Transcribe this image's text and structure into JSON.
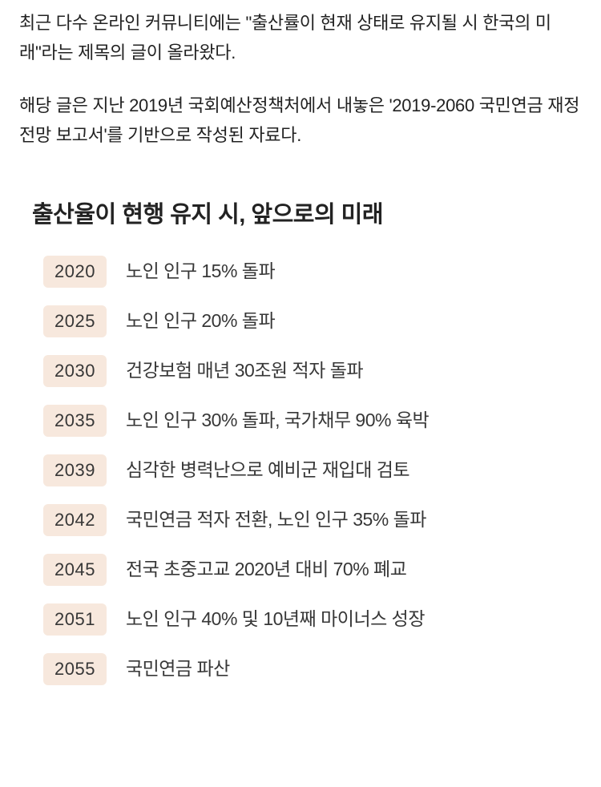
{
  "article": {
    "paragraphs": [
      "최근 다수 온라인 커뮤니티에는 \"출산률이 현재 상태로 유지될 시 한국의 미래\"라는 제목의 글이 올라왔다.",
      "해당 글은 지난 2019년 국회예산정책처에서 내놓은 '2019-2060 국민연금 재정 전망 보고서'를 기반으로 작성된 자료다."
    ]
  },
  "infographic": {
    "title": "출산율이 현행 유지 시, 앞으로의 미래",
    "year_badge_bg": "#f7e8dd",
    "year_badge_color": "#373737",
    "title_fontsize": 29,
    "desc_fontsize": 23,
    "timeline": [
      {
        "year": "2020",
        "desc": "노인 인구 15% 돌파"
      },
      {
        "year": "2025",
        "desc": "노인 인구 20% 돌파"
      },
      {
        "year": "2030",
        "desc": "건강보험 매년 30조원 적자 돌파"
      },
      {
        "year": "2035",
        "desc": "노인 인구 30% 돌파, 국가채무 90% 육박"
      },
      {
        "year": "2039",
        "desc": "심각한 병력난으로 예비군 재입대 검토"
      },
      {
        "year": "2042",
        "desc": "국민연금 적자 전환, 노인 인구 35% 돌파"
      },
      {
        "year": "2045",
        "desc": "전국 초중고교 2020년 대비 70% 폐교"
      },
      {
        "year": "2051",
        "desc": "노인 인구 40% 및 10년째 마이너스 성장"
      },
      {
        "year": "2055",
        "desc": "국민연금 파산"
      }
    ]
  }
}
